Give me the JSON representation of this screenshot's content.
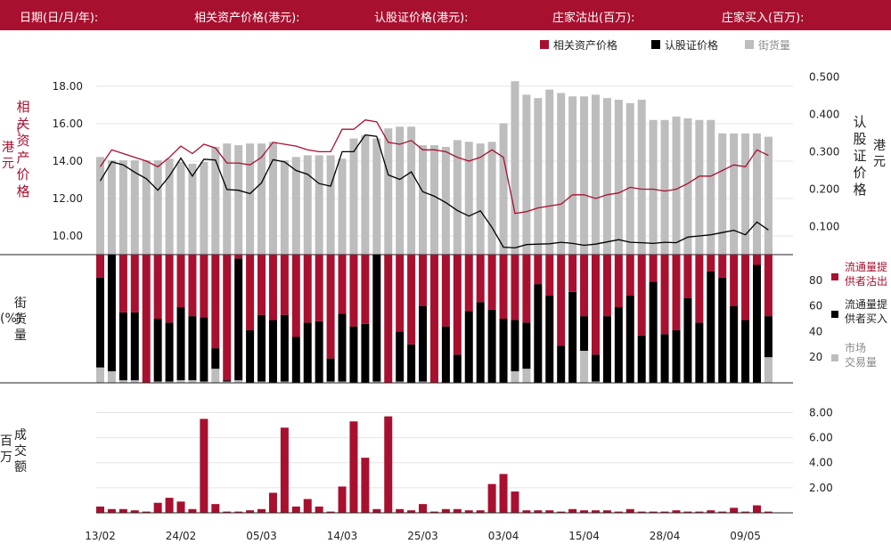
{
  "header": {
    "date_label": "日期(日/月/年):",
    "underlying_label": "相关资产价格(港元):",
    "warrant_label": "认股证价格(港元):",
    "net_sell_label": "庄家沽出(百万):",
    "net_buy_label": "庄家买入(百万):"
  },
  "colors": {
    "header_bg": "#a8102f",
    "red": "#a8102f",
    "black": "#000000",
    "gray": "#bdbdbd"
  },
  "chart_data": [
    {
      "type": "line",
      "legend": [
        "相关资产价格",
        "认股证价格",
        "街货量"
      ],
      "legend_position": "top-right",
      "y_left_label": "相关资产价格（港元）",
      "y_left_ticks": [
        "18.00",
        "16.00",
        "14.00",
        "12.00",
        "10.00"
      ],
      "y_left_range": [
        9.0,
        18.9
      ],
      "y_right_label": "认股证价格（港元）",
      "y_right_ticks": [
        "0.500",
        "0.400",
        "0.300",
        "0.200",
        "0.100"
      ],
      "y_right_range": [
        0.025,
        0.52
      ],
      "underlying_price": [
        13.7,
        14.6,
        14.4,
        14.2,
        14.0,
        13.7,
        14.2,
        14.8,
        14.4,
        14.9,
        14.7,
        13.9,
        13.9,
        13.8,
        14.2,
        15.0,
        14.9,
        14.8,
        14.6,
        14.5,
        14.5,
        15.7,
        15.7,
        16.2,
        16.1,
        15.0,
        14.9,
        15.1,
        14.6,
        14.6,
        14.5,
        14.2,
        14.0,
        14.2,
        14.6,
        14.2,
        11.2,
        11.3,
        11.5,
        11.6,
        11.7,
        12.2,
        12.2,
        12.0,
        12.2,
        12.3,
        12.6,
        12.5,
        12.5,
        12.4,
        12.5,
        12.8,
        13.2,
        13.2,
        13.5,
        13.8,
        13.7,
        14.6,
        14.3
      ],
      "warrant_price": [
        0.222,
        0.273,
        0.265,
        0.245,
        0.228,
        0.197,
        0.235,
        0.283,
        0.235,
        0.28,
        0.278,
        0.199,
        0.197,
        0.188,
        0.217,
        0.279,
        0.273,
        0.25,
        0.24,
        0.215,
        0.208,
        0.3,
        0.3,
        0.345,
        0.341,
        0.238,
        0.226,
        0.246,
        0.193,
        0.181,
        0.164,
        0.143,
        0.128,
        0.142,
        0.098,
        0.045,
        0.043,
        0.052,
        0.053,
        0.054,
        0.058,
        0.055,
        0.05,
        0.053,
        0.059,
        0.065,
        0.058,
        0.057,
        0.055,
        0.058,
        0.057,
        0.072,
        0.075,
        0.078,
        0.084,
        0.09,
        0.078,
        0.112,
        0.091
      ],
      "outstanding_pct": [
        58,
        56,
        56,
        56,
        56,
        56,
        57,
        55,
        54,
        55,
        64,
        66,
        65,
        66,
        66,
        67,
        56,
        58,
        59,
        59,
        59,
        57,
        69,
        71,
        69,
        75,
        76,
        76,
        65,
        65,
        64,
        68,
        67,
        66,
        67,
        78,
        103,
        95,
        93,
        98,
        96,
        94,
        94,
        95,
        93,
        92,
        90,
        92,
        80,
        80,
        82,
        81,
        80,
        80,
        72,
        72,
        72,
        72,
        70
      ],
      "outstanding_range": [
        0,
        110
      ]
    },
    {
      "type": "bar",
      "stacked": true,
      "y_label": "街货量（%）",
      "y_ticks": [
        "80",
        "60",
        "40",
        "20"
      ],
      "y_range": [
        0,
        100
      ],
      "legend": [
        "流通量提供者沽出",
        "流通量提供者买入",
        "市场交易量"
      ],
      "liquidity_sell_pct": [
        18,
        0,
        45,
        45,
        100,
        50,
        53,
        41,
        48,
        49,
        73,
        98,
        3,
        59,
        47,
        51,
        47,
        64,
        53,
        52,
        81,
        46,
        56,
        54,
        0,
        100,
        60,
        70,
        40,
        100,
        56,
        78,
        44,
        37,
        43,
        50,
        51,
        53,
        23,
        32,
        71,
        29,
        48,
        78,
        48,
        41,
        32,
        63,
        21,
        62,
        59,
        34,
        53,
        13,
        18,
        40,
        51,
        8,
        48
      ],
      "liquidity_buy_pct": [
        70,
        91,
        53,
        53,
        0,
        49,
        46,
        57,
        50,
        50,
        16,
        1,
        95,
        41,
        52,
        49,
        52,
        36,
        47,
        48,
        18,
        53,
        44,
        46,
        99,
        0,
        39,
        30,
        59,
        0,
        44,
        22,
        56,
        63,
        57,
        50,
        40,
        36,
        77,
        68,
        29,
        71,
        27,
        21,
        52,
        59,
        68,
        37,
        79,
        38,
        41,
        66,
        47,
        87,
        82,
        60,
        49,
        92,
        32
      ],
      "market_volume_pct": [
        12,
        9,
        2,
        2,
        0,
        1,
        1,
        2,
        2,
        1,
        11,
        1,
        2,
        0,
        1,
        0,
        1,
        0,
        0,
        0,
        1,
        1,
        0,
        0,
        1,
        0,
        1,
        0,
        1,
        0,
        0,
        0,
        0,
        0,
        0,
        0,
        9,
        11,
        0,
        0,
        0,
        0,
        25,
        1,
        0,
        0,
        0,
        0,
        0,
        0,
        0,
        0,
        0,
        0,
        0,
        0,
        0,
        0,
        20
      ]
    },
    {
      "type": "bar",
      "y_label": "成交额（百万）",
      "y_ticks": [
        "8.00",
        "6.00",
        "4.00",
        "2.00"
      ],
      "y_range": [
        0,
        8.6
      ],
      "turnover_millions": [
        0.5,
        0.3,
        0.3,
        0.2,
        0.1,
        0.8,
        1.2,
        0.9,
        0.3,
        7.5,
        0.7,
        0.1,
        0.1,
        0.2,
        0.3,
        1.6,
        6.8,
        0.5,
        1.1,
        0.5,
        0.1,
        2.1,
        7.3,
        4.4,
        0.3,
        7.7,
        0.3,
        0.2,
        0.7,
        0.1,
        0.3,
        0.3,
        0.2,
        0.2,
        2.3,
        3.1,
        1.7,
        0.2,
        0.2,
        0.2,
        0.1,
        0.3,
        0.2,
        0.2,
        0.2,
        0.1,
        0.3,
        0.1,
        0.1,
        0.1,
        0.2,
        0.1,
        0.1,
        0.2,
        0.1,
        0.4,
        0.1,
        0.6,
        0.1
      ],
      "x_tick_labels": [
        "13/02",
        "24/02",
        "05/03",
        "14/03",
        "25/03",
        "03/04",
        "15/04",
        "28/04",
        "09/05"
      ],
      "x_tick_indices": [
        0,
        7,
        14,
        21,
        28,
        35,
        42,
        49,
        56
      ]
    }
  ]
}
